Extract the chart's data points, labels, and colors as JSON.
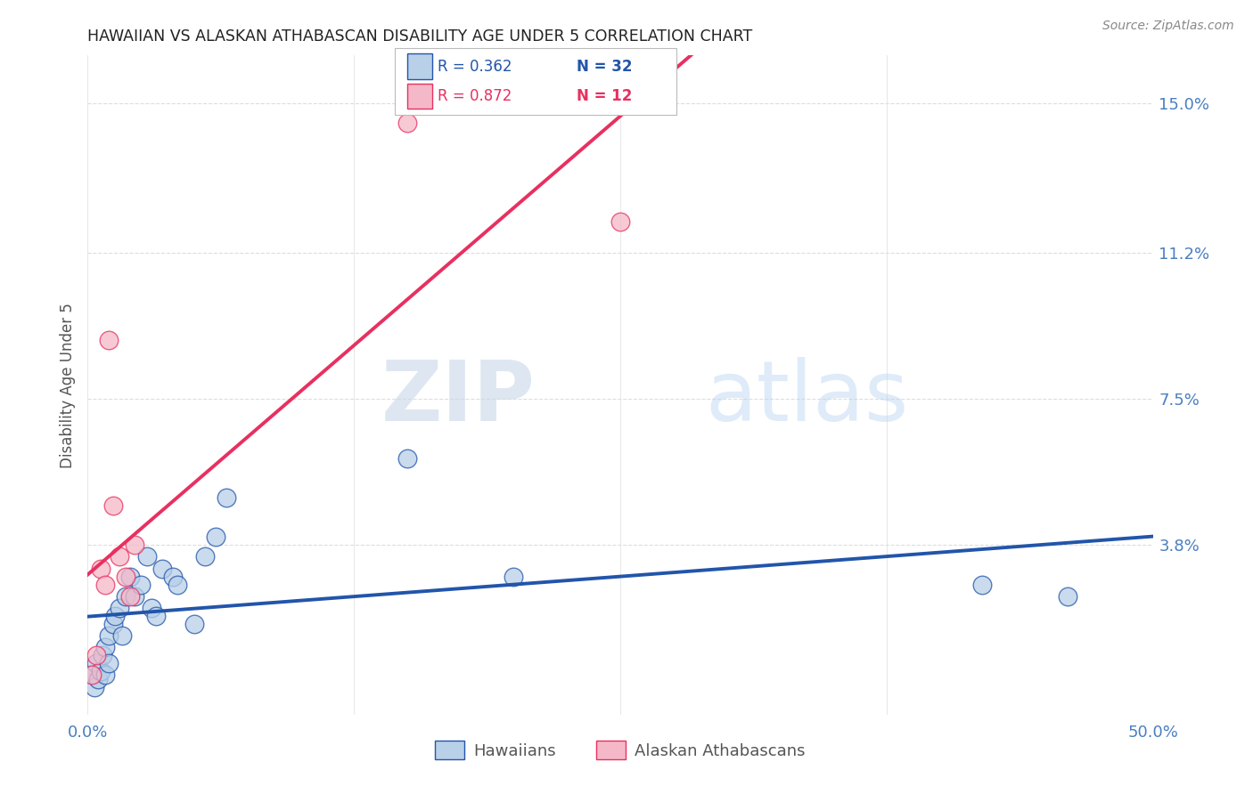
{
  "title": "HAWAIIAN VS ALASKAN ATHABASCAN DISABILITY AGE UNDER 5 CORRELATION CHART",
  "source_text": "Source: ZipAtlas.com",
  "ylabel": "Disability Age Under 5",
  "xlim": [
    0.0,
    0.5
  ],
  "ylim": [
    -0.005,
    0.162
  ],
  "yticks": [
    0.0,
    0.038,
    0.075,
    0.112,
    0.15
  ],
  "ytick_labels": [
    "",
    "3.8%",
    "7.5%",
    "11.2%",
    "15.0%"
  ],
  "xticks": [
    0.0,
    0.125,
    0.25,
    0.375,
    0.5
  ],
  "xtick_labels": [
    "0.0%",
    "",
    "",
    "",
    "50.0%"
  ],
  "hawaiians_x": [
    0.002,
    0.003,
    0.004,
    0.005,
    0.006,
    0.007,
    0.008,
    0.008,
    0.01,
    0.01,
    0.012,
    0.013,
    0.015,
    0.016,
    0.018,
    0.02,
    0.022,
    0.025,
    0.028,
    0.03,
    0.032,
    0.035,
    0.04,
    0.042,
    0.05,
    0.055,
    0.06,
    0.065,
    0.15,
    0.2,
    0.42,
    0.46
  ],
  "hawaiians_y": [
    0.005,
    0.002,
    0.008,
    0.004,
    0.006,
    0.01,
    0.005,
    0.012,
    0.008,
    0.015,
    0.018,
    0.02,
    0.022,
    0.015,
    0.025,
    0.03,
    0.025,
    0.028,
    0.035,
    0.022,
    0.02,
    0.032,
    0.03,
    0.028,
    0.018,
    0.035,
    0.04,
    0.05,
    0.06,
    0.03,
    0.028,
    0.025
  ],
  "athabascan_x": [
    0.002,
    0.004,
    0.006,
    0.008,
    0.01,
    0.012,
    0.015,
    0.018,
    0.02,
    0.022,
    0.15,
    0.25
  ],
  "athabascan_y": [
    0.005,
    0.01,
    0.032,
    0.028,
    0.09,
    0.048,
    0.035,
    0.03,
    0.025,
    0.038,
    0.145,
    0.12
  ],
  "hawaiians_color": "#b8d0e8",
  "athabascan_color": "#f5b8c8",
  "hawaiians_line_color": "#2255aa",
  "athabascan_line_color": "#e83060",
  "R_hawaiians": 0.362,
  "N_hawaiians": 32,
  "R_athabascan": 0.872,
  "N_athabascan": 12,
  "legend_label_hawaiians": "Hawaiians",
  "legend_label_athabascan": "Alaskan Athabascans",
  "watermark_zip": "ZIP",
  "watermark_atlas": "atlas",
  "background_color": "#ffffff",
  "title_color": "#222222",
  "axis_label_color": "#4a7fc1",
  "tick_label_color": "#4a7fc1",
  "grid_color": "#dddddd",
  "source_color": "#888888"
}
